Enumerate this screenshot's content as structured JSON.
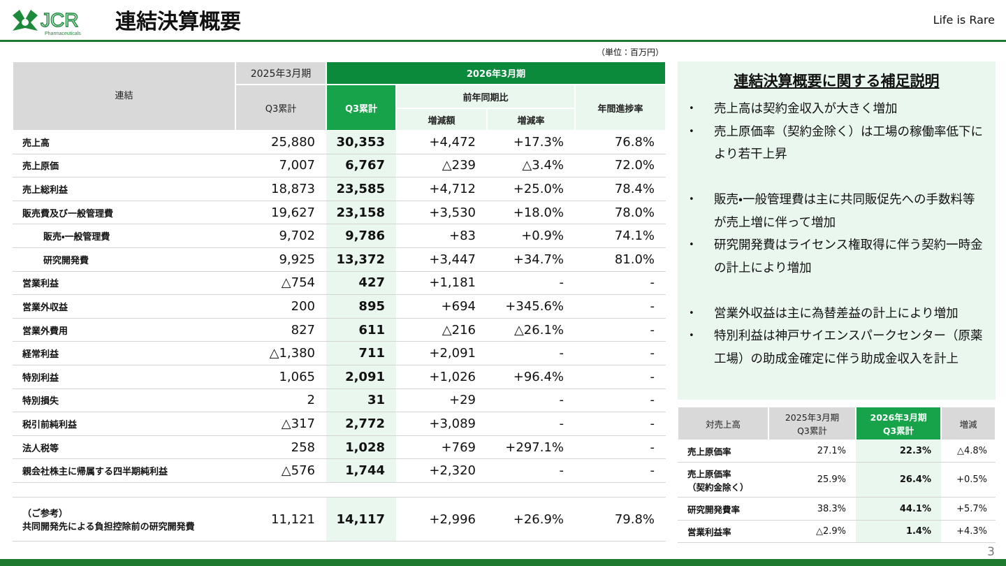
{
  "header": {
    "company": "JCR",
    "company_sub": "Pharmaceuticals",
    "title": "連結決算概要",
    "tagline": "Life is Rare"
  },
  "unit": "（単位：百万円）",
  "main_table": {
    "corner": "連結",
    "prev_period": "2025年3月期",
    "curr_period": "2026年3月期",
    "prev_col": "Q3累計",
    "curr_col": "Q3累計",
    "yoy": "前年同期比",
    "diff": "増減額",
    "rate": "増減率",
    "progress": "年間進捗率",
    "rows": [
      [
        "売上高",
        "25,880",
        "30,353",
        "+4,472",
        "+17.3%",
        "76.8%"
      ],
      [
        "売上原価",
        "7,007",
        "6,767",
        "△239",
        "△3.4%",
        "72.0%"
      ],
      [
        "売上総利益",
        "18,873",
        "23,585",
        "+4,712",
        "+25.0%",
        "78.4%"
      ],
      [
        "販売費及び一般管理費",
        "19,627",
        "23,158",
        "+3,530",
        "+18.0%",
        "78.0%"
      ],
      [
        "販売・一般管理費",
        "9,702",
        "9,786",
        "+83",
        "+0.9%",
        "74.1%"
      ],
      [
        "研究開発費",
        "9,925",
        "13,372",
        "+3,447",
        "+34.7%",
        "81.0%"
      ],
      [
        "営業利益",
        "△754",
        "427",
        "+1,181",
        "-",
        "-"
      ],
      [
        "営業外収益",
        "200",
        "895",
        "+694",
        "+345.6%",
        "-"
      ],
      [
        "営業外費用",
        "827",
        "611",
        "△216",
        "△26.1%",
        "-"
      ],
      [
        "経常利益",
        "△1,380",
        "711",
        "+2,091",
        "-",
        "-"
      ],
      [
        "特別利益",
        "1,065",
        "2,091",
        "+1,026",
        "+96.4%",
        "-"
      ],
      [
        "特別損失",
        "2",
        "31",
        "+29",
        "-",
        "-"
      ],
      [
        "税引前純利益",
        "△317",
        "2,772",
        "+3,089",
        "-",
        "-"
      ],
      [
        "法人税等",
        "258",
        "1,028",
        "+769",
        "+297.1%",
        "-"
      ],
      [
        "親会社株主に帰属する四半期純利益",
        "△576",
        "1,744",
        "+2,320",
        "-",
        "-"
      ]
    ],
    "note_row": [
      [
        "（ご参考）",
        "共同開発先による負担控除前の研究開発費"
      ],
      "11,121",
      "14,117",
      "+2,996",
      "+26.9%",
      "79.8%"
    ]
  },
  "notes": {
    "title": "連結決算概要に関する補足説明",
    "groups": [
      [
        "売上高は契約金収入が大きく増加",
        "売上原価率（契約金除く）は工場の稼働率低下により若干上昇"
      ],
      [
        "販売・一般管理費は主に共同販促先への手数料等が売上増に伴って増加",
        "研究開発費はライセンス権取得に伴う契約一時金の計上により増加"
      ],
      [
        "営業外収益は主に為替差益の計上により増加",
        "特別利益は神戸サイエンスパークセンター（原薬工場）の助成金確定に伴う助成金収入を計上"
      ]
    ]
  },
  "ratio_table": {
    "header": [
      "対売上高",
      [
        "2025年3月期",
        "Q3累計"
      ],
      [
        "2026年3月期",
        "Q3累計"
      ],
      "増減"
    ],
    "rows": [
      [
        "売上原価率",
        "27.1%",
        "22.3%",
        "△4.8%"
      ],
      [
        [
          "売上原価率",
          "（契約金除く）"
        ],
        "25.9%",
        "26.4%",
        "+0.5%"
      ],
      [
        "研究開発費率",
        "38.3%",
        "44.1%",
        "+5.7%"
      ],
      [
        "営業利益率",
        "△2.9%",
        "1.4%",
        "+4.3%"
      ]
    ]
  },
  "page_number": "3"
}
